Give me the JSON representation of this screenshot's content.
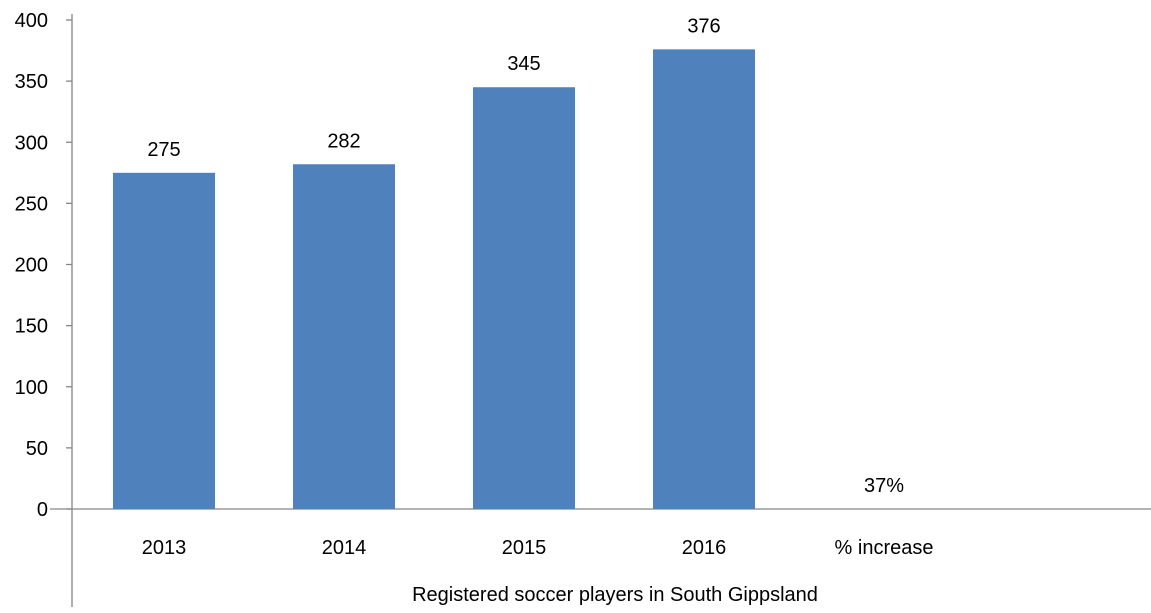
{
  "chart_data": {
    "type": "bar",
    "categories": [
      "2013",
      "2014",
      "2015",
      "2016",
      "% increase"
    ],
    "values": [
      275,
      282,
      345,
      376,
      null
    ],
    "data_labels": [
      "275",
      "282",
      "345",
      "376",
      "37%"
    ],
    "xlabel": "Registered soccer players in South Gippsland",
    "ylabel": "",
    "ylim": [
      0,
      400
    ],
    "yticks": [
      0,
      50,
      100,
      150,
      200,
      250,
      300,
      350,
      400
    ],
    "bar_color": "#4F81BD",
    "grid": false,
    "legend": "none"
  }
}
